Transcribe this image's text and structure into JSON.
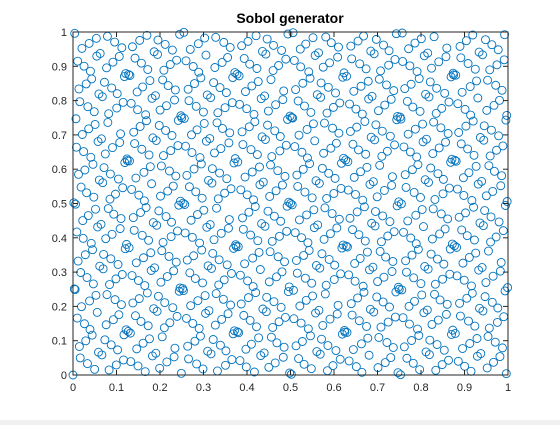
{
  "window": {
    "background": "#ffffff"
  },
  "chart_data": {
    "type": "scatter",
    "title": "Sobol generator",
    "xlabel": "",
    "ylabel": "",
    "xlim": [
      0,
      1
    ],
    "ylim": [
      0,
      1
    ],
    "xticks": [
      "0",
      "0.1",
      "0.2",
      "0.3",
      "0.4",
      "0.5",
      "0.6",
      "0.7",
      "0.8",
      "0.9",
      "1"
    ],
    "yticks": [
      "0",
      "0.1",
      "0.2",
      "0.3",
      "0.4",
      "0.5",
      "0.6",
      "0.7",
      "0.8",
      "0.9",
      "1"
    ],
    "grid": false,
    "legend": false,
    "marker": "open-circle",
    "series": [
      {
        "sequence": "sobol-2d",
        "n_points": 1000,
        "marker_color": "#0072bd",
        "x": [],
        "y": []
      }
    ]
  }
}
